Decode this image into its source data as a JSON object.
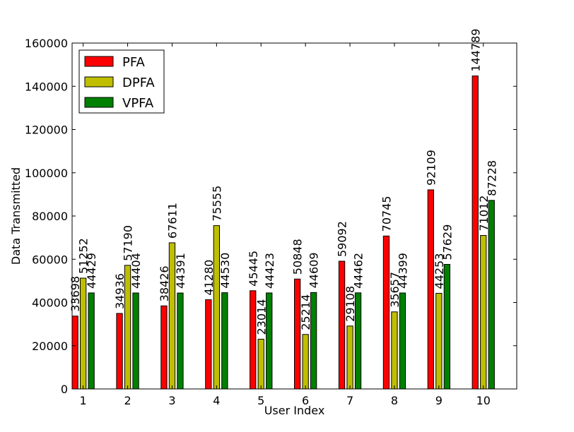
{
  "chart_data": {
    "type": "bar",
    "title": "",
    "xlabel": "User Index",
    "ylabel": "Data Transmitted",
    "categories": [
      "1",
      "2",
      "3",
      "4",
      "5",
      "6",
      "7",
      "8",
      "9",
      "10"
    ],
    "ylim": [
      0,
      160000
    ],
    "yticks": [
      0,
      20000,
      40000,
      60000,
      80000,
      100000,
      120000,
      140000,
      160000
    ],
    "ytick_labels": [
      "0",
      "20000",
      "40000",
      "60000",
      "80000",
      "100000",
      "120000",
      "140000",
      "160000"
    ],
    "grid": false,
    "legend_position": "top-left",
    "series": [
      {
        "name": "PFA",
        "color": "#ff0000",
        "values": [
          33698,
          34936,
          38426,
          41280,
          45445,
          50848,
          59092,
          70745,
          92109,
          144789
        ],
        "labels": [
          "33698",
          "34936",
          "38426",
          "41280",
          "45445",
          "50848",
          "59092",
          "70745",
          "92109",
          "144789"
        ]
      },
      {
        "name": "DPFA",
        "color": "#bfbf00",
        "values": [
          51252,
          57190,
          67611,
          75555,
          23014,
          25214,
          29108,
          35657,
          44253,
          71012
        ],
        "labels": [
          "51252",
          "57190",
          "67611",
          "75555",
          "23014",
          "25214",
          "29108",
          "35657",
          "44253",
          "71012"
        ]
      },
      {
        "name": "VPFA",
        "color": "#008000",
        "values": [
          44429,
          44404,
          44391,
          44530,
          44423,
          44609,
          44462,
          44399,
          57629,
          87228
        ],
        "labels": [
          "44429",
          "44404",
          "44391",
          "44530",
          "44423",
          "44609",
          "44462",
          "44399",
          "57629",
          "87228"
        ]
      }
    ]
  }
}
